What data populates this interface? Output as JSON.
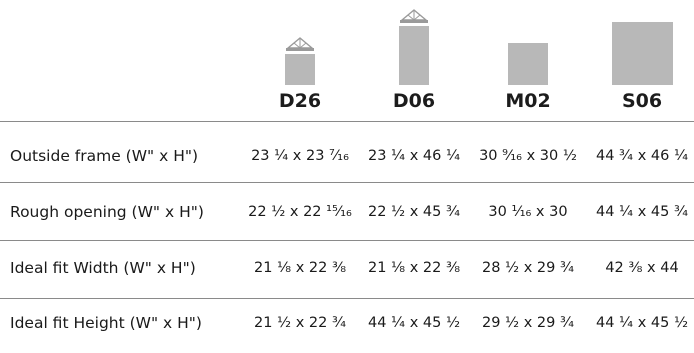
{
  "products": [
    {
      "code": "D26",
      "icon": "flat-roof-skylight-small-icon"
    },
    {
      "code": "D06",
      "icon": "flat-roof-skylight-tall-icon"
    },
    {
      "code": "M02",
      "icon": "skylight-medium-icon"
    },
    {
      "code": "S06",
      "icon": "skylight-large-icon"
    }
  ],
  "rows": [
    {
      "label": "Outside frame  (W\" x H\")",
      "values": [
        "23 ¼ x 23 ⁷⁄₁₆",
        "23 ¼ x 46 ¼",
        "30 ⁹⁄₁₆ x 30 ½",
        "44 ¾ x 46 ¼"
      ]
    },
    {
      "label": "Rough opening  (W\" x H\")",
      "values": [
        "22 ½ x 22 ¹⁵⁄₁₆",
        "22 ½ x 45 ¾",
        "30 ¹⁄₁₆ x 30",
        "44 ¼ x 45 ¾"
      ]
    },
    {
      "label": "Ideal fit Width  (W\" x H\")",
      "values": [
        "21 ⅛ x 22 ⅜",
        "21 ⅛ x 22 ⅜",
        "28 ½ x 29 ¾",
        "42 ⅜ x 44"
      ]
    },
    {
      "label": "Ideal fit Height  (W\" x H\")",
      "values": [
        "21 ½ x 22 ¾",
        "44 ¼ x 45 ½",
        "29  ½ x 29 ¾",
        "44 ¼ x 45 ½"
      ]
    }
  ],
  "colors": {
    "icon_fill": "#b8b8b8",
    "rule": "#8a8a8a",
    "text": "#1a1a1a"
  }
}
